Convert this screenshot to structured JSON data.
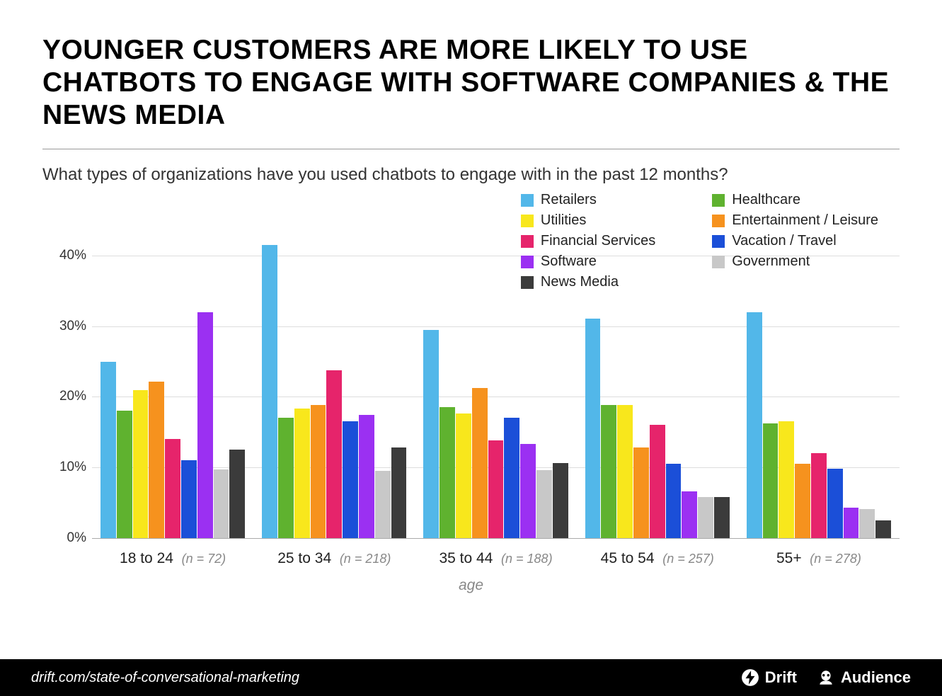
{
  "title": "YOUNGER CUSTOMERS ARE MORE LIKELY TO USE CHATBOTS TO ENGAGE WITH SOFTWARE COMPANIES & THE NEWS MEDIA",
  "subtitle": "What types of organizations have you used chatbots to engage with in the past 12 months?",
  "chart": {
    "type": "grouped-bar",
    "y_max": 45,
    "y_ticks": [
      0,
      10,
      20,
      30,
      40
    ],
    "y_tick_suffix": "%",
    "x_axis_title": "age",
    "gridline_color": "#dddddd",
    "axis_label_color": "#333333",
    "series": [
      {
        "key": "retailers",
        "label": "Retailers",
        "color": "#52b7e9"
      },
      {
        "key": "healthcare",
        "label": "Healthcare",
        "color": "#5fb22f"
      },
      {
        "key": "utilities",
        "label": "Utilities",
        "color": "#f8e71c"
      },
      {
        "key": "entertainment",
        "label": "Entertainment / Leisure",
        "color": "#f6921e"
      },
      {
        "key": "financial",
        "label": "Financial Services",
        "color": "#e6246b"
      },
      {
        "key": "vacation",
        "label": "Vacation / Travel",
        "color": "#1b4fd8"
      },
      {
        "key": "software",
        "label": "Software",
        "color": "#9b30f2"
      },
      {
        "key": "government",
        "label": "Government",
        "color": "#c8c8c8"
      },
      {
        "key": "newsmedia",
        "label": "News Media",
        "color": "#3b3b3b"
      }
    ],
    "legend_order": [
      "retailers",
      "utilities",
      "financial",
      "software",
      "newsmedia",
      "healthcare",
      "entertainment",
      "vacation",
      "government"
    ],
    "groups": [
      {
        "label": "18 to 24",
        "n": 72,
        "values": {
          "retailers": 25.0,
          "healthcare": 18.0,
          "utilities": 21.0,
          "entertainment": 22.2,
          "financial": 14.0,
          "vacation": 11.0,
          "software": 32.0,
          "government": 9.7,
          "newsmedia": 12.5
        }
      },
      {
        "label": "25 to 34",
        "n": 218,
        "values": {
          "retailers": 41.5,
          "healthcare": 17.0,
          "utilities": 18.3,
          "entertainment": 18.8,
          "financial": 23.8,
          "vacation": 16.5,
          "software": 17.4,
          "government": 9.5,
          "newsmedia": 12.8
        }
      },
      {
        "label": "35 to 44",
        "n": 188,
        "values": {
          "retailers": 29.5,
          "healthcare": 18.5,
          "utilities": 17.6,
          "entertainment": 21.3,
          "financial": 13.8,
          "vacation": 17.0,
          "software": 13.3,
          "government": 9.6,
          "newsmedia": 10.6
        }
      },
      {
        "label": "45 to 54",
        "n": 257,
        "values": {
          "retailers": 31.1,
          "healthcare": 18.8,
          "utilities": 18.8,
          "entertainment": 12.8,
          "financial": 16.0,
          "vacation": 10.5,
          "software": 6.6,
          "government": 5.8,
          "newsmedia": 5.8
        }
      },
      {
        "label": "55+",
        "n": 278,
        "values": {
          "retailers": 32.0,
          "healthcare": 16.2,
          "utilities": 16.5,
          "entertainment": 10.5,
          "financial": 12.0,
          "vacation": 9.8,
          "software": 4.3,
          "government": 4.1,
          "newsmedia": 2.5
        }
      }
    ]
  },
  "footer": {
    "url": "drift.com/state-of-conversational-marketing",
    "brand1": "Drift",
    "brand2": "Audience"
  }
}
